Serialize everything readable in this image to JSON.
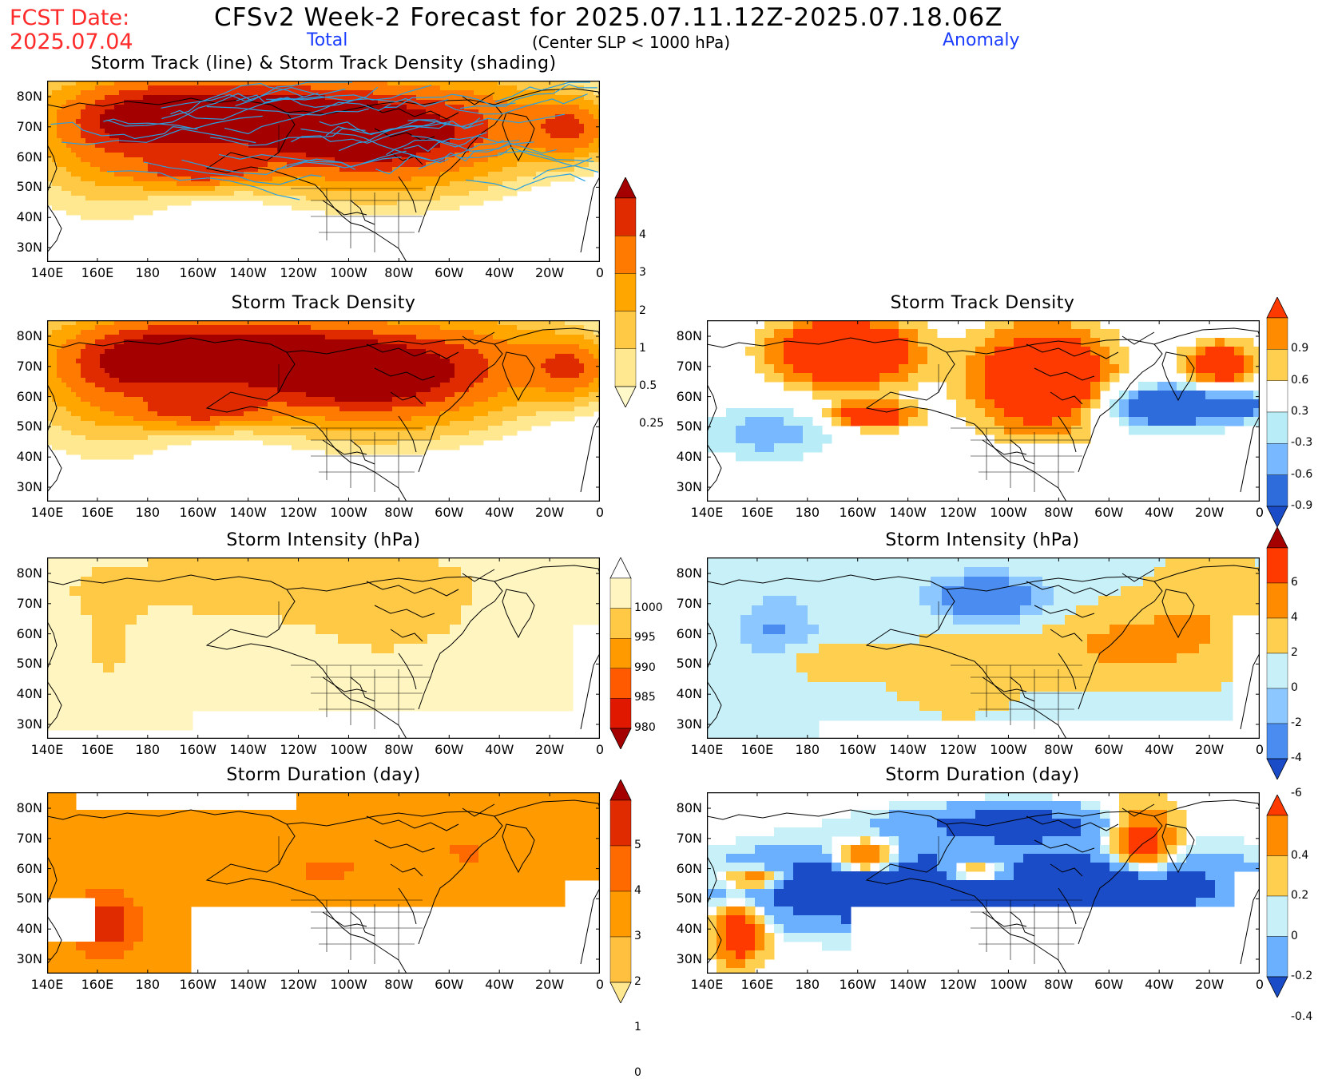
{
  "header": {
    "fcst_line1": "FCST Date:",
    "fcst_line2": "2025.07.04",
    "title": "CFSv2 Week-2 Forecast for 2025.07.11.12Z-2025.07.18.06Z",
    "subtitle": "(Center SLP < 1000 hPa)",
    "total_label": "Total",
    "anomaly_label": "Anomaly"
  },
  "axes": {
    "lon_labels": [
      "140E",
      "160E",
      "180",
      "160W",
      "140W",
      "120W",
      "100W",
      "80W",
      "60W",
      "40W",
      "20W",
      "0"
    ],
    "lat_labels": [
      "80N",
      "70N",
      "60N",
      "50N",
      "40N",
      "30N"
    ]
  },
  "panels": {
    "track_total": {
      "title": "Storm Track (line) & Storm Track Density (shading)"
    },
    "density_total": {
      "title": "Storm Track Density"
    },
    "density_anom": {
      "title": "Storm Track Density"
    },
    "intensity_total": {
      "title": "Storm Intensity (hPa)"
    },
    "intensity_anom": {
      "title": "Storm Intensity (hPa)"
    },
    "duration_total": {
      "title": "Storm Duration (day)"
    },
    "duration_anom": {
      "title": "Storm Duration (day)"
    }
  },
  "colorbars": {
    "density_total": {
      "labels": [
        "4",
        "3",
        "2",
        "1",
        "0.5",
        "0.25"
      ],
      "colors": [
        "#a50000",
        "#e02a00",
        "#ff7a00",
        "#ffa600",
        "#ffc845",
        "#ffe890",
        "#fff8c8"
      ]
    },
    "density_anom": {
      "labels": [
        "0.9",
        "0.6",
        "0.3",
        "-0.3",
        "-0.6",
        "-0.9"
      ],
      "colors": [
        "#ff3a00",
        "#ff8c00",
        "#ffd050",
        "#ffffff",
        "#b8ecf6",
        "#78b8ff",
        "#2e6cdc",
        "#1a4cc8"
      ]
    },
    "intensity_total": {
      "labels": [
        "1000",
        "995",
        "990",
        "985",
        "980"
      ],
      "colors": [
        "#ffffff",
        "#fff5c0",
        "#ffc845",
        "#ff9a00",
        "#ff5a00",
        "#e01800",
        "#a50000"
      ]
    },
    "intensity_anom": {
      "labels": [
        "6",
        "4",
        "2",
        "0",
        "-2",
        "-4",
        "-6"
      ],
      "colors": [
        "#a50000",
        "#ff3a00",
        "#ff8c00",
        "#ffd050",
        "#c8f0f8",
        "#8cc8ff",
        "#4a8cf0",
        "#1a4cc8"
      ]
    },
    "duration_total": {
      "labels": [
        "5",
        "4",
        "3",
        "2",
        "1",
        "0"
      ],
      "colors": [
        "#a50000",
        "#e02a00",
        "#ff6a00",
        "#ff9a00",
        "#ffc040",
        "#ffe890"
      ]
    },
    "duration_anom": {
      "labels": [
        "0.4",
        "0.2",
        "0",
        "-0.2",
        "-0.4"
      ],
      "colors": [
        "#ff3a00",
        "#ff8c00",
        "#ffd050",
        "#c8f0f8",
        "#6ab0ff",
        "#1a4cc8"
      ]
    }
  }
}
